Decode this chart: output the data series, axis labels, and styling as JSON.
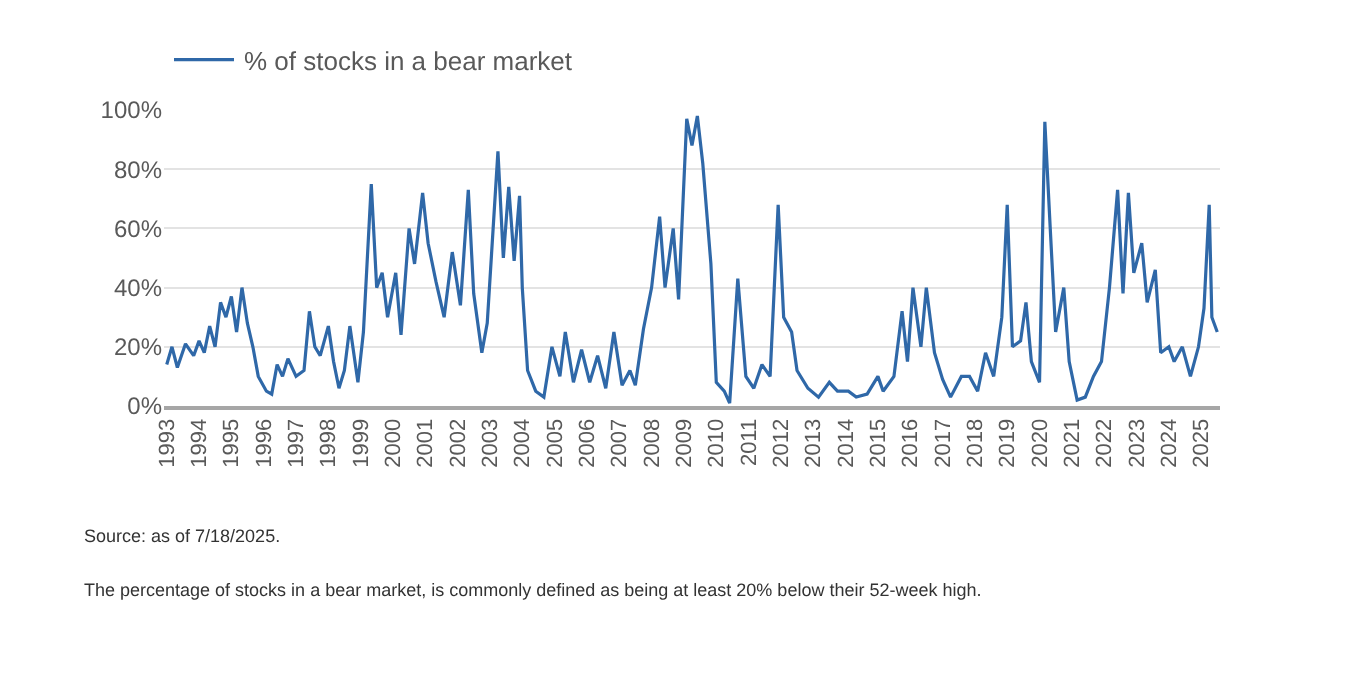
{
  "chart_data": {
    "type": "line",
    "x": [
      "1993-01",
      "1993-03",
      "1993-05",
      "1993-08",
      "1993-11",
      "1994-01",
      "1994-03",
      "1994-05",
      "1994-07",
      "1994-09",
      "1994-11",
      "1995-01",
      "1995-03",
      "1995-05",
      "1995-07",
      "1995-09",
      "1995-11",
      "1996-02",
      "1996-04",
      "1996-06",
      "1996-08",
      "1996-10",
      "1997-01",
      "1997-04",
      "1997-06",
      "1997-08",
      "1997-10",
      "1998-01",
      "1998-03",
      "1998-05",
      "1998-07",
      "1998-09",
      "1998-12",
      "1999-02",
      "1999-05",
      "1999-07",
      "1999-09",
      "1999-11",
      "2000-02",
      "2000-04",
      "2000-07",
      "2000-09",
      "2000-12",
      "2001-02",
      "2001-05",
      "2001-08",
      "2001-11",
      "2002-02",
      "2002-05",
      "2002-07",
      "2002-10",
      "2002-12",
      "2003-04",
      "2003-06",
      "2003-08",
      "2003-10",
      "2003-12",
      "2004-01",
      "2004-03",
      "2004-06",
      "2004-09",
      "2004-12",
      "2005-03",
      "2005-05",
      "2005-08",
      "2005-11",
      "2006-02",
      "2006-05",
      "2006-08",
      "2006-11",
      "2007-02",
      "2007-05",
      "2007-07",
      "2007-10",
      "2008-01",
      "2008-04",
      "2008-06",
      "2008-09",
      "2008-11",
      "2009-02",
      "2009-04",
      "2009-06",
      "2009-08",
      "2009-11",
      "2010-01",
      "2010-04",
      "2010-06",
      "2010-09",
      "2010-12",
      "2011-03",
      "2011-06",
      "2011-09",
      "2011-12",
      "2012-02",
      "2012-05",
      "2012-07",
      "2012-11",
      "2013-03",
      "2013-07",
      "2013-10",
      "2014-02",
      "2014-05",
      "2014-09",
      "2015-01",
      "2015-03",
      "2015-07",
      "2015-10",
      "2015-12",
      "2016-02",
      "2016-05",
      "2016-07",
      "2016-10",
      "2017-01",
      "2017-04",
      "2017-08",
      "2017-11",
      "2018-02",
      "2018-05",
      "2018-08",
      "2018-11",
      "2019-01",
      "2019-03",
      "2019-06",
      "2019-08",
      "2019-10",
      "2020-01",
      "2020-03",
      "2020-05",
      "2020-07",
      "2020-10",
      "2020-12",
      "2021-03",
      "2021-06",
      "2021-09",
      "2021-12",
      "2022-03",
      "2022-06",
      "2022-08",
      "2022-10",
      "2022-12",
      "2023-03",
      "2023-05",
      "2023-08",
      "2023-10",
      "2024-01",
      "2024-03",
      "2024-06",
      "2024-09",
      "2024-12",
      "2025-02",
      "2025-04",
      "2025-05",
      "2025-07"
    ],
    "series": [
      {
        "name": "% of stocks in a bear market",
        "color": "#2f68a8",
        "values": [
          14,
          20,
          13,
          21,
          17,
          22,
          18,
          27,
          20,
          35,
          30,
          37,
          25,
          40,
          28,
          20,
          10,
          5,
          4,
          14,
          10,
          16,
          10,
          12,
          32,
          20,
          17,
          27,
          15,
          6,
          12,
          27,
          8,
          25,
          75,
          40,
          45,
          30,
          45,
          24,
          60,
          48,
          72,
          55,
          42,
          30,
          52,
          34,
          73,
          38,
          18,
          28,
          86,
          50,
          74,
          49,
          71,
          40,
          12,
          5,
          3,
          20,
          10,
          25,
          8,
          19,
          8,
          17,
          6,
          25,
          7,
          12,
          7,
          26,
          40,
          64,
          40,
          60,
          36,
          97,
          88,
          98,
          82,
          48,
          8,
          5,
          1,
          43,
          10,
          6,
          14,
          10,
          68,
          30,
          25,
          12,
          6,
          3,
          8,
          5,
          5,
          3,
          4,
          10,
          5,
          10,
          32,
          15,
          40,
          20,
          40,
          18,
          9,
          3,
          10,
          10,
          5,
          18,
          10,
          30,
          68,
          20,
          22,
          35,
          15,
          8,
          96,
          60,
          25,
          40,
          15,
          2,
          3,
          10,
          15,
          40,
          73,
          38,
          72,
          45,
          55,
          35,
          46,
          18,
          20,
          15,
          20,
          10,
          20,
          33,
          68,
          30,
          25
        ]
      }
    ],
    "xlim": [
      "1992-12",
      "2025-08"
    ],
    "xticks": [
      "1993",
      "1994",
      "1995",
      "1996",
      "1997",
      "1998",
      "1999",
      "2000",
      "2001",
      "2002",
      "2003",
      "2004",
      "2005",
      "2006",
      "2007",
      "2008",
      "2009",
      "2010",
      "2011",
      "2012",
      "2013",
      "2014",
      "2015",
      "2016",
      "2017",
      "2018",
      "2019",
      "2020",
      "2021",
      "2022",
      "2023",
      "2024",
      "2025"
    ],
    "ylim": [
      0,
      100
    ],
    "yticks": [
      {
        "value": 0,
        "label": "0%"
      },
      {
        "value": 20,
        "label": "20%"
      },
      {
        "value": 40,
        "label": "40%"
      },
      {
        "value": 60,
        "label": "60%"
      },
      {
        "value": 80,
        "label": "80%"
      },
      {
        "value": 100,
        "label": "100%"
      }
    ],
    "grid": "y",
    "legend": "top left",
    "marker": "none",
    "line_style": "solid",
    "annotations": [
      "Source: as of 7/18/2025.",
      "The percentage of stocks in a bear market, is commonly defined as being at least 20% below their 52-week high."
    ]
  }
}
